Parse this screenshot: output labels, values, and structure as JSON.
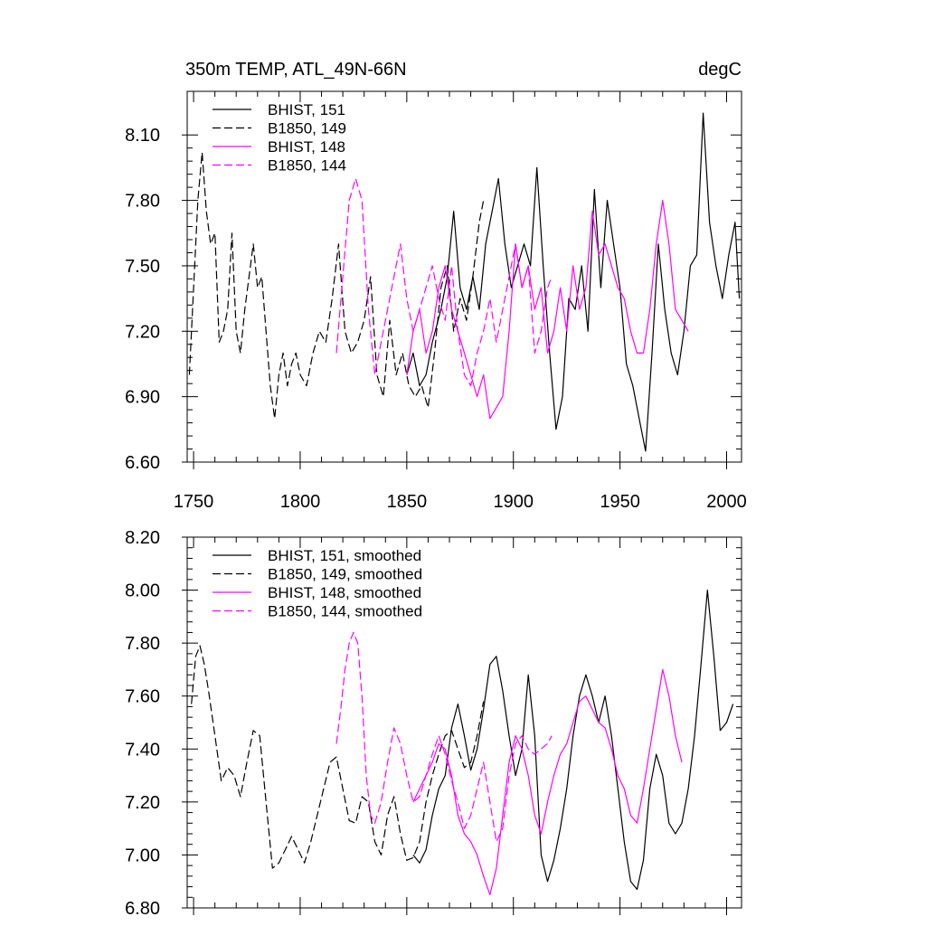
{
  "chart_data": [
    {
      "type": "line",
      "title": "350m TEMP, ATL_49N-66N",
      "units": "degC",
      "xlim": [
        1747,
        2007
      ],
      "ylim": [
        6.6,
        8.3
      ],
      "xticks": [
        1750,
        1800,
        1850,
        1900,
        1950,
        2000
      ],
      "xtick_labels": [
        "1750",
        "1800",
        "1850",
        "1900",
        "1950",
        "2000"
      ],
      "yticks": [
        6.6,
        6.9,
        7.2,
        7.5,
        7.8,
        8.1
      ],
      "ytick_labels": [
        "6.60",
        "6.90",
        "7.20",
        "7.50",
        "7.80",
        "8.10"
      ],
      "legend_position": "top-left",
      "series": [
        {
          "name": "BHIST, 151",
          "color": "#000000",
          "dash": "solid",
          "x": [
            1850,
            1853,
            1856,
            1859,
            1862,
            1866,
            1869,
            1872,
            1875,
            1878,
            1881,
            1884,
            1887,
            1890,
            1893,
            1896,
            1899,
            1902,
            1905,
            1908,
            1911,
            1914,
            1917,
            1920,
            1923,
            1926,
            1929,
            1932,
            1935,
            1938,
            1941,
            1944,
            1947,
            1950,
            1953,
            1956,
            1959,
            1962,
            1965,
            1968,
            1971,
            1974,
            1977,
            1980,
            1983,
            1986,
            1989,
            1992,
            1995,
            1998,
            2001,
            2004,
            2006
          ],
          "y": [
            7.0,
            7.1,
            6.95,
            7.0,
            7.15,
            7.3,
            7.45,
            7.75,
            7.4,
            7.3,
            7.45,
            7.3,
            7.6,
            7.75,
            7.9,
            7.6,
            7.4,
            7.5,
            7.6,
            7.5,
            7.95,
            7.5,
            7.1,
            6.75,
            6.9,
            7.35,
            7.3,
            7.5,
            7.2,
            7.85,
            7.4,
            7.8,
            7.6,
            7.4,
            7.05,
            6.95,
            6.8,
            6.65,
            7.1,
            7.6,
            7.3,
            7.1,
            7.0,
            7.2,
            7.5,
            7.55,
            8.2,
            7.7,
            7.5,
            7.35,
            7.55,
            7.7,
            7.35
          ]
        },
        {
          "name": "B1850, 149",
          "color": "#000000",
          "dash": "dashed",
          "x": [
            1748,
            1750,
            1752,
            1754,
            1756,
            1758,
            1760,
            1762,
            1764,
            1766,
            1768,
            1770,
            1772,
            1774,
            1776,
            1778,
            1780,
            1782,
            1784,
            1786,
            1788,
            1790,
            1792,
            1794,
            1796,
            1798,
            1800,
            1803,
            1806,
            1809,
            1812,
            1815,
            1818,
            1821,
            1824,
            1827,
            1830,
            1833,
            1836,
            1839,
            1842,
            1845,
            1848,
            1851,
            1854,
            1857,
            1860,
            1863,
            1866,
            1869,
            1872,
            1875,
            1878,
            1881,
            1884,
            1886
          ],
          "y": [
            7.0,
            7.4,
            7.8,
            8.02,
            7.75,
            7.6,
            7.65,
            7.15,
            7.2,
            7.3,
            7.65,
            7.2,
            7.1,
            7.3,
            7.45,
            7.6,
            7.4,
            7.45,
            7.2,
            6.95,
            6.8,
            7.0,
            7.1,
            6.95,
            7.05,
            7.1,
            7.0,
            6.95,
            7.1,
            7.2,
            7.15,
            7.35,
            7.6,
            7.2,
            7.1,
            7.15,
            7.25,
            7.45,
            7.0,
            6.9,
            7.25,
            7.0,
            7.1,
            6.95,
            6.9,
            6.95,
            6.85,
            7.1,
            7.4,
            7.5,
            7.2,
            7.35,
            7.25,
            7.45,
            7.7,
            7.8
          ]
        },
        {
          "name": "BHIST, 148",
          "color": "#ff00ff",
          "dash": "solid",
          "x": [
            1850,
            1853,
            1856,
            1859,
            1862,
            1865,
            1868,
            1871,
            1874,
            1877,
            1880,
            1883,
            1886,
            1889,
            1892,
            1895,
            1898,
            1901,
            1904,
            1907,
            1910,
            1913,
            1916,
            1919,
            1922,
            1925,
            1928,
            1931,
            1934,
            1937,
            1940,
            1943,
            1946,
            1949,
            1952,
            1955,
            1958,
            1961,
            1964,
            1967,
            1970,
            1973,
            1976,
            1979,
            1982
          ],
          "y": [
            7.0,
            7.2,
            7.3,
            7.1,
            7.2,
            7.4,
            7.5,
            7.3,
            7.2,
            7.1,
            7.0,
            6.9,
            7.0,
            6.8,
            6.85,
            6.9,
            7.2,
            7.6,
            7.4,
            7.5,
            7.3,
            7.4,
            7.1,
            7.2,
            7.4,
            7.2,
            7.5,
            7.3,
            7.4,
            7.75,
            7.55,
            7.6,
            7.5,
            7.4,
            7.35,
            7.2,
            7.1,
            7.1,
            7.3,
            7.6,
            7.8,
            7.6,
            7.3,
            7.25,
            7.2
          ]
        },
        {
          "name": "B1850, 144",
          "color": "#ff00ff",
          "dash": "dashed",
          "x": [
            1817,
            1820,
            1823,
            1826,
            1829,
            1832,
            1835,
            1838,
            1841,
            1844,
            1847,
            1850,
            1853,
            1856,
            1859,
            1862,
            1865,
            1868,
            1871,
            1874,
            1877,
            1880,
            1883,
            1886,
            1889,
            1892,
            1895,
            1898,
            1901,
            1904,
            1907,
            1910,
            1913,
            1916,
            1918
          ],
          "y": [
            7.1,
            7.45,
            7.8,
            7.9,
            7.8,
            7.3,
            7.0,
            7.15,
            7.3,
            7.45,
            7.6,
            7.35,
            7.2,
            7.3,
            7.4,
            7.5,
            7.35,
            7.25,
            7.5,
            7.2,
            7.0,
            6.95,
            7.1,
            7.2,
            7.35,
            7.15,
            7.3,
            7.45,
            7.6,
            7.4,
            7.5,
            7.1,
            7.2,
            7.4,
            7.45
          ]
        }
      ]
    },
    {
      "type": "line",
      "title": "",
      "units": "",
      "xlim": [
        1747,
        2007
      ],
      "ylim": [
        6.8,
        8.2
      ],
      "xticks": [
        1750,
        1800,
        1850,
        1900,
        1950,
        2000
      ],
      "xtick_labels": [],
      "yticks": [
        6.8,
        7.0,
        7.2,
        7.4,
        7.6,
        7.8,
        8.0,
        8.2
      ],
      "ytick_labels": [
        "6.80",
        "7.00",
        "7.20",
        "7.40",
        "7.60",
        "7.80",
        "8.00",
        "8.20"
      ],
      "legend_position": "top-left",
      "series": [
        {
          "name": "BHIST, 151, smoothed",
          "color": "#000000",
          "dash": "solid",
          "x": [
            1853,
            1856,
            1859,
            1862,
            1865,
            1868,
            1871,
            1874,
            1877,
            1880,
            1883,
            1886,
            1889,
            1892,
            1895,
            1898,
            1901,
            1904,
            1907,
            1910,
            1913,
            1916,
            1919,
            1922,
            1925,
            1928,
            1931,
            1934,
            1937,
            1940,
            1943,
            1946,
            1949,
            1952,
            1955,
            1958,
            1961,
            1964,
            1967,
            1970,
            1973,
            1976,
            1979,
            1982,
            1985,
            1988,
            1991,
            1994,
            1997,
            2000,
            2003
          ],
          "y": [
            7.0,
            6.97,
            7.02,
            7.15,
            7.25,
            7.3,
            7.48,
            7.57,
            7.45,
            7.32,
            7.4,
            7.55,
            7.72,
            7.75,
            7.62,
            7.45,
            7.3,
            7.4,
            7.68,
            7.45,
            7.0,
            6.9,
            6.98,
            7.1,
            7.25,
            7.45,
            7.6,
            7.68,
            7.6,
            7.5,
            7.6,
            7.45,
            7.25,
            7.05,
            6.9,
            6.87,
            6.98,
            7.25,
            7.38,
            7.3,
            7.12,
            7.08,
            7.12,
            7.25,
            7.45,
            7.72,
            8.0,
            7.75,
            7.47,
            7.5,
            7.57
          ]
        },
        {
          "name": "B1850, 149, smoothed",
          "color": "#000000",
          "dash": "dashed",
          "x": [
            1749,
            1751,
            1753,
            1755,
            1757,
            1760,
            1763,
            1766,
            1769,
            1772,
            1775,
            1778,
            1781,
            1784,
            1787,
            1790,
            1793,
            1796,
            1799,
            1802,
            1805,
            1808,
            1811,
            1814,
            1817,
            1820,
            1823,
            1826,
            1829,
            1832,
            1835,
            1838,
            1841,
            1844,
            1847,
            1850,
            1853,
            1856,
            1859,
            1862,
            1865,
            1868,
            1871,
            1874,
            1877,
            1880,
            1883,
            1886
          ],
          "y": [
            7.57,
            7.75,
            7.79,
            7.72,
            7.62,
            7.45,
            7.28,
            7.33,
            7.3,
            7.22,
            7.35,
            7.47,
            7.45,
            7.2,
            6.95,
            6.97,
            7.02,
            7.07,
            7.02,
            6.97,
            7.05,
            7.15,
            7.25,
            7.35,
            7.37,
            7.25,
            7.13,
            7.12,
            7.22,
            7.2,
            7.05,
            7.0,
            7.15,
            7.22,
            7.08,
            6.98,
            6.99,
            7.05,
            7.2,
            7.3,
            7.38,
            7.45,
            7.47,
            7.4,
            7.33,
            7.35,
            7.45,
            7.58
          ]
        },
        {
          "name": "BHIST, 148, smoothed",
          "color": "#ff00ff",
          "dash": "solid",
          "x": [
            1853,
            1856,
            1859,
            1862,
            1865,
            1868,
            1871,
            1874,
            1877,
            1880,
            1883,
            1886,
            1889,
            1892,
            1895,
            1898,
            1901,
            1904,
            1907,
            1910,
            1913,
            1916,
            1919,
            1922,
            1925,
            1928,
            1931,
            1934,
            1937,
            1940,
            1943,
            1946,
            1949,
            1952,
            1955,
            1958,
            1961,
            1964,
            1967,
            1970,
            1973,
            1976,
            1979
          ],
          "y": [
            7.2,
            7.25,
            7.3,
            7.35,
            7.42,
            7.4,
            7.3,
            7.15,
            7.08,
            7.05,
            7.0,
            6.92,
            6.85,
            6.95,
            7.15,
            7.35,
            7.45,
            7.4,
            7.3,
            7.15,
            7.08,
            7.2,
            7.3,
            7.38,
            7.42,
            7.5,
            7.58,
            7.6,
            7.55,
            7.5,
            7.48,
            7.4,
            7.3,
            7.25,
            7.15,
            7.12,
            7.25,
            7.4,
            7.55,
            7.7,
            7.6,
            7.45,
            7.35
          ]
        },
        {
          "name": "B1850, 144, smoothed",
          "color": "#ff00ff",
          "dash": "dashed",
          "x": [
            1817,
            1819,
            1821,
            1823,
            1825,
            1827,
            1829,
            1831,
            1833,
            1835,
            1838,
            1841,
            1844,
            1847,
            1850,
            1853,
            1856,
            1859,
            1862,
            1865,
            1868,
            1871,
            1874,
            1877,
            1880,
            1883,
            1886,
            1889,
            1892,
            1895,
            1898,
            1901,
            1904,
            1907,
            1910,
            1913,
            1916,
            1918
          ],
          "y": [
            7.42,
            7.55,
            7.7,
            7.8,
            7.84,
            7.8,
            7.6,
            7.3,
            7.15,
            7.12,
            7.2,
            7.35,
            7.48,
            7.42,
            7.3,
            7.2,
            7.22,
            7.3,
            7.38,
            7.45,
            7.38,
            7.28,
            7.2,
            7.1,
            7.15,
            7.25,
            7.35,
            7.2,
            7.05,
            7.1,
            7.3,
            7.42,
            7.45,
            7.4,
            7.38,
            7.4,
            7.42,
            7.45
          ]
        }
      ]
    }
  ]
}
